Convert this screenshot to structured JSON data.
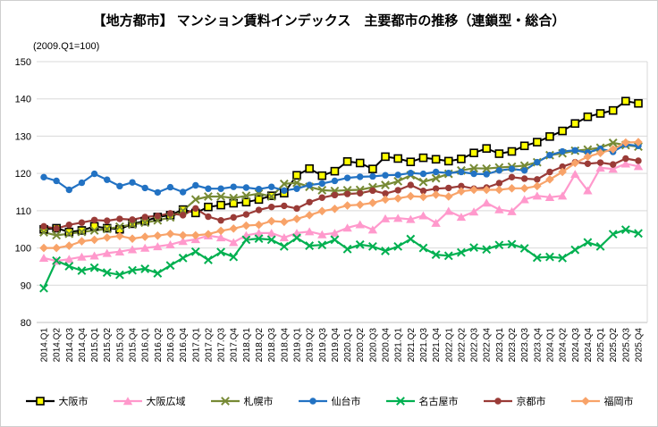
{
  "title": "【地方都市】 マンション賃料インデックス　主要都市の推移（連鎖型・総合）",
  "subtitle": "(2009.Q1=100)",
  "chart_data": {
    "type": "line",
    "title": "【地方都市】 マンション賃料インデックス　主要都市の推移（連鎖型・総合）",
    "subtitle": "(2009.Q1=100)",
    "ylim": [
      80,
      150
    ],
    "yticks": [
      80,
      90,
      100,
      110,
      120,
      130,
      140,
      150
    ],
    "grid": true,
    "legend_position": "bottom",
    "gridline_color": "#d9d9d9",
    "axis_line_color": "#bfbfbf",
    "categories": [
      "2014.Q1",
      "2014.Q2",
      "2014.Q3",
      "2014.Q4",
      "2015.Q1",
      "2015.Q2",
      "2015.Q3",
      "2015.Q4",
      "2016.Q1",
      "2016.Q2",
      "2016.Q3",
      "2016.Q4",
      "2017.Q1",
      "2017.Q2",
      "2017.Q3",
      "2017.Q4",
      "2018.Q1",
      "2018.Q2",
      "2018.Q3",
      "2018.Q4",
      "2019.Q1",
      "2019.Q2",
      "2019.Q3",
      "2019.Q4",
      "2020.Q1",
      "2020.Q2",
      "2020.Q3",
      "2020.Q4",
      "2021.Q1",
      "2021.Q2",
      "2021.Q3",
      "2021.Q4",
      "2022.Q1",
      "2022.Q2",
      "2022.Q3",
      "2022.Q4",
      "2023.Q1",
      "2023.Q2",
      "2023.Q3",
      "2023.Q4",
      "2024.Q1",
      "2024.Q2",
      "2024.Q3",
      "2024.Q4",
      "2025.Q1",
      "2025.Q2",
      "2025.Q3",
      "2025.Q4"
    ],
    "series": [
      {
        "key": "osaka-city",
        "name": "大阪市",
        "line_color": "#000000",
        "marker": "square",
        "marker_fill": "#ffff00",
        "marker_stroke": "#000000",
        "values": [
          105.0,
          105.3,
          104.3,
          104.7,
          105.8,
          105.3,
          105.0,
          106.5,
          107.2,
          108.3,
          108.8,
          110.3,
          109.4,
          111.0,
          111.5,
          112.0,
          112.3,
          113.0,
          114.0,
          114.7,
          119.5,
          121.3,
          119.4,
          120.6,
          123.2,
          122.8,
          121.2,
          124.5,
          124.0,
          123.1,
          124.2,
          123.8,
          123.3,
          123.9,
          125.5,
          126.7,
          125.3,
          125.9,
          127.4,
          128.4,
          129.9,
          131.4,
          133.4,
          135.2,
          136.1,
          136.9,
          139.4,
          138.8
        ]
      },
      {
        "key": "osaka-area",
        "name": "大阪広域",
        "line_color": "#ff99cc",
        "marker": "triangle",
        "marker_fill": "#ff99cc",
        "marker_stroke": "#ff99cc",
        "values": [
          97.3,
          96.5,
          97.0,
          97.6,
          97.9,
          98.6,
          99.0,
          99.6,
          100.0,
          100.4,
          100.9,
          101.8,
          102.3,
          103.3,
          102.8,
          101.5,
          103.4,
          104.0,
          104.0,
          102.8,
          104.0,
          104.4,
          103.6,
          104.0,
          105.4,
          106.3,
          104.9,
          107.9,
          108.0,
          107.7,
          108.7,
          106.7,
          109.9,
          108.3,
          109.7,
          112.1,
          110.3,
          109.8,
          113.0,
          114.0,
          113.6,
          114.0,
          119.8,
          115.4,
          121.5,
          121.2,
          122.6,
          121.9
        ]
      },
      {
        "key": "sapporo",
        "name": "札幌市",
        "line_color": "#778a35",
        "marker": "x",
        "marker_fill": "#778a35",
        "marker_stroke": "#778a35",
        "values": [
          104.2,
          103.4,
          103.8,
          104.3,
          104.7,
          105.1,
          105.7,
          106.3,
          106.8,
          107.4,
          108.2,
          110.0,
          113.0,
          113.8,
          113.8,
          113.4,
          114.0,
          114.6,
          113.8,
          117.2,
          117.5,
          116.4,
          115.5,
          115.3,
          115.5,
          115.6,
          116.3,
          116.9,
          117.9,
          119.5,
          117.7,
          118.7,
          119.9,
          120.8,
          121.4,
          121.3,
          121.6,
          121.8,
          122.1,
          123.0,
          124.9,
          125.4,
          126.1,
          126.4,
          126.9,
          128.2,
          127.6,
          127.2
        ]
      },
      {
        "key": "sendai",
        "name": "仙台市",
        "line_color": "#2272c3",
        "marker": "circle",
        "marker_fill": "#2272c3",
        "marker_stroke": "#2272c3",
        "values": [
          119.0,
          118.0,
          115.6,
          117.5,
          119.9,
          118.3,
          116.6,
          117.6,
          116.1,
          114.9,
          116.3,
          115.0,
          116.8,
          115.9,
          115.9,
          116.4,
          116.2,
          115.8,
          116.4,
          115.4,
          115.9,
          116.9,
          117.3,
          118.0,
          118.8,
          119.1,
          119.2,
          119.5,
          119.6,
          120.1,
          119.9,
          120.4,
          120.1,
          120.4,
          119.9,
          119.8,
          120.8,
          121.2,
          120.8,
          123.0,
          124.9,
          125.9,
          126.2,
          125.6,
          126.6,
          125.8,
          127.8,
          127.4
        ]
      },
      {
        "key": "nagoya",
        "name": "名古屋市",
        "line_color": "#00b050",
        "marker": "x",
        "marker_fill": "#00b050",
        "marker_stroke": "#00b050",
        "values": [
          89.2,
          96.6,
          95.1,
          93.9,
          94.7,
          93.4,
          92.8,
          94.0,
          94.4,
          93.2,
          95.3,
          97.3,
          99.0,
          96.8,
          98.9,
          97.6,
          102.2,
          102.5,
          102.2,
          100.4,
          102.7,
          100.6,
          100.8,
          102.2,
          99.7,
          100.9,
          100.4,
          99.2,
          100.4,
          102.4,
          100.0,
          98.2,
          97.9,
          98.8,
          100.1,
          99.6,
          100.8,
          101.0,
          99.9,
          97.4,
          97.6,
          97.3,
          99.5,
          101.5,
          100.4,
          103.7,
          104.9,
          103.9
        ]
      },
      {
        "key": "kyoto",
        "name": "京都市",
        "line_color": "#9a3b37",
        "marker": "circle",
        "marker_fill": "#9a3b37",
        "marker_stroke": "#9a3b37",
        "values": [
          105.8,
          105.2,
          106.2,
          106.8,
          107.5,
          107.3,
          107.8,
          107.6,
          108.3,
          108.6,
          109.3,
          108.8,
          110.6,
          108.4,
          107.4,
          108.2,
          109.0,
          110.2,
          111.0,
          111.3,
          110.6,
          112.3,
          113.5,
          114.2,
          114.5,
          114.7,
          115.4,
          114.6,
          115.5,
          116.9,
          115.3,
          115.9,
          116.1,
          116.6,
          115.9,
          116.2,
          117.4,
          119.0,
          118.6,
          118.4,
          120.4,
          121.8,
          123.0,
          122.6,
          122.9,
          122.4,
          124.0,
          123.4
        ]
      },
      {
        "key": "fukuoka",
        "name": "福岡市",
        "line_color": "#f8a369",
        "marker": "diamond",
        "marker_fill": "#f8a369",
        "marker_stroke": "#f8a369",
        "values": [
          100.0,
          100.0,
          100.6,
          101.8,
          102.2,
          102.8,
          103.2,
          102.5,
          103.0,
          103.3,
          103.8,
          103.4,
          103.4,
          103.7,
          104.6,
          105.2,
          106.0,
          106.2,
          107.2,
          107.0,
          107.8,
          108.8,
          109.9,
          110.5,
          111.4,
          111.6,
          112.1,
          113.0,
          113.3,
          113.9,
          113.7,
          114.3,
          113.8,
          115.2,
          115.6,
          115.6,
          115.6,
          116.0,
          116.0,
          116.6,
          118.4,
          120.4,
          122.8,
          124.5,
          125.5,
          126.5,
          128.3,
          128.4
        ]
      }
    ]
  }
}
